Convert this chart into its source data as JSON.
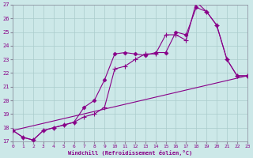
{
  "xlabel": "Windchill (Refroidissement éolien,°C)",
  "bg_color": "#cce8e8",
  "line_color": "#880088",
  "grid_color": "#aacccc",
  "ylim": [
    17,
    27
  ],
  "xlim": [
    0,
    23
  ],
  "yticks": [
    17,
    18,
    19,
    20,
    21,
    22,
    23,
    24,
    25,
    26,
    27
  ],
  "xticks": [
    0,
    1,
    2,
    3,
    4,
    5,
    6,
    7,
    8,
    9,
    10,
    11,
    12,
    13,
    14,
    15,
    16,
    17,
    18,
    19,
    20,
    21,
    22,
    23
  ],
  "line1_x": [
    0,
    1,
    2,
    3,
    4,
    5,
    6,
    7,
    8,
    9,
    10,
    11,
    12,
    13,
    14,
    15,
    16,
    17,
    18,
    19,
    20,
    21,
    22,
    23
  ],
  "line1_y": [
    17.8,
    17.3,
    17.1,
    17.8,
    18.0,
    18.2,
    18.4,
    18.8,
    19.0,
    19.5,
    22.3,
    22.5,
    23.0,
    23.4,
    23.4,
    24.8,
    24.8,
    24.4,
    27.2,
    26.5,
    25.5,
    23.0,
    21.8,
    21.8
  ],
  "line2_x": [
    0,
    1,
    2,
    3,
    4,
    5,
    6,
    7,
    8,
    9,
    10,
    11,
    12,
    13,
    14,
    15,
    16,
    17,
    18,
    19,
    20,
    21,
    22,
    23
  ],
  "line2_y": [
    17.8,
    17.3,
    17.1,
    17.8,
    18.0,
    18.2,
    18.4,
    19.5,
    20.0,
    21.5,
    23.4,
    23.5,
    23.4,
    23.3,
    23.5,
    23.5,
    25.0,
    24.8,
    26.8,
    26.5,
    25.5,
    23.0,
    21.8,
    21.8
  ],
  "line3_x": [
    0,
    23
  ],
  "line3_y": [
    17.8,
    21.8
  ]
}
